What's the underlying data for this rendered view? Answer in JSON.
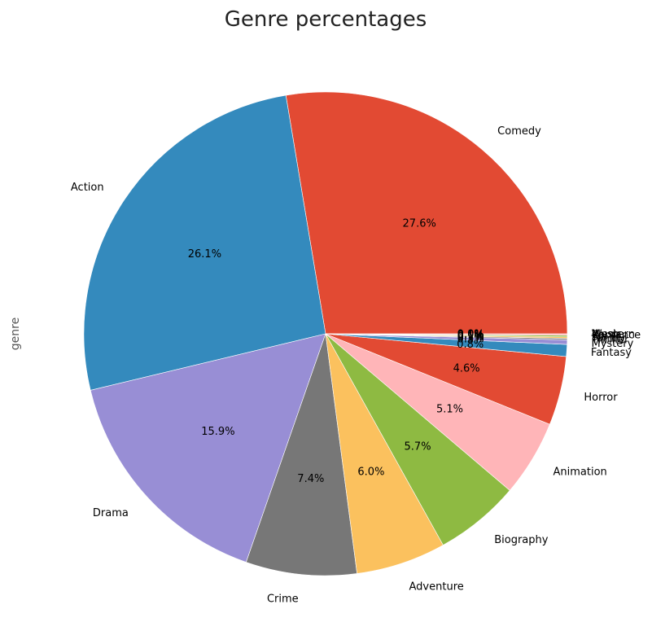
{
  "chart_data": {
    "type": "pie",
    "title": "Genre percentages",
    "ylabel": "genre",
    "start_angle_deg": 0,
    "direction": "counterclockwise",
    "slices": [
      {
        "label": "Comedy",
        "value": 27.6,
        "pct_label": "27.6%",
        "color": "#E24A33"
      },
      {
        "label": "Action",
        "value": 26.1,
        "pct_label": "26.1%",
        "color": "#348ABD"
      },
      {
        "label": "Drama",
        "value": 15.9,
        "pct_label": "15.9%",
        "color": "#988ED5"
      },
      {
        "label": "Crime",
        "value": 7.4,
        "pct_label": "7.4%",
        "color": "#777777"
      },
      {
        "label": "Adventure",
        "value": 6.0,
        "pct_label": "6.0%",
        "color": "#FBC15E"
      },
      {
        "label": "Biography",
        "value": 5.7,
        "pct_label": "5.7%",
        "color": "#8EBA42"
      },
      {
        "label": "Animation",
        "value": 5.1,
        "pct_label": "5.1%",
        "color": "#FFB5B8"
      },
      {
        "label": "Horror",
        "value": 4.6,
        "pct_label": "4.6%",
        "color": "#E24A33"
      },
      {
        "label": "Fantasy",
        "value": 0.8,
        "pct_label": "0.8%",
        "color": "#348ABD"
      },
      {
        "label": "Mystery",
        "value": 0.3,
        "pct_label": "0.3%",
        "color": "#988ED5"
      },
      {
        "label": "Thriller",
        "value": 0.1,
        "pct_label": "0.1%",
        "color": "#777777"
      },
      {
        "label": "Family",
        "value": 0.1,
        "pct_label": "0.1%",
        "color": "#FBC15E"
      },
      {
        "label": "Sci-Fi",
        "value": 0.1,
        "pct_label": "0.1%",
        "color": "#8EBA42"
      },
      {
        "label": "Romance",
        "value": 0.1,
        "pct_label": "0.1%",
        "color": "#FFB5B8"
      },
      {
        "label": "Music",
        "value": 0.0,
        "pct_label": "0.0%",
        "color": "#E24A33"
      },
      {
        "label": "Western",
        "value": 0.0,
        "pct_label": "0.0%",
        "color": "#348ABD"
      }
    ]
  }
}
